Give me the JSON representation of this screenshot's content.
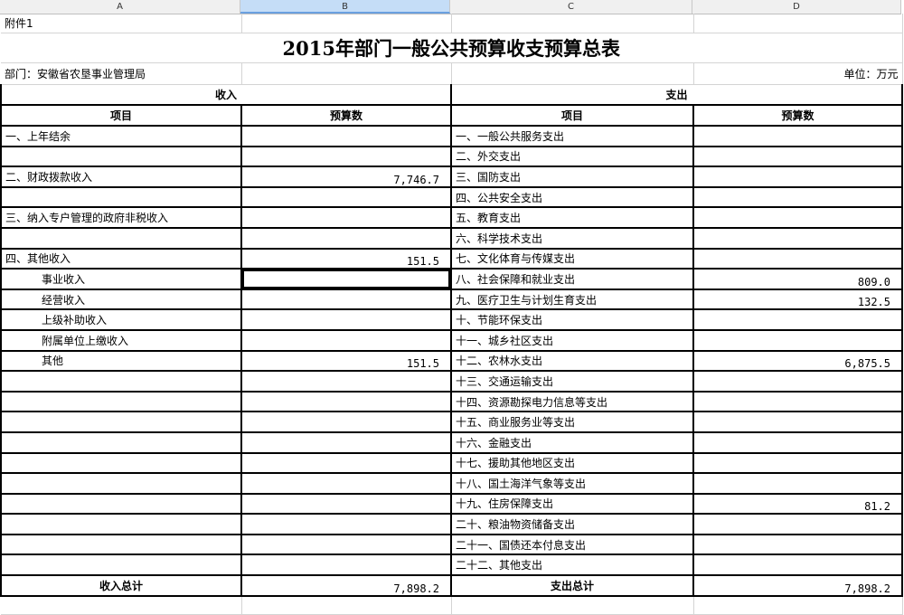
{
  "columns": [
    "A",
    "B",
    "C",
    "D"
  ],
  "selected_column": "B",
  "attachment": "附件1",
  "title": "2015年部门一般公共预算收支预算总表",
  "department": "部门：安徽省农垦事业管理局",
  "unit": "单位：万元",
  "income_header": "收入",
  "expense_header": "支出",
  "item_header": "项目",
  "budget_header": "预算数",
  "rows": [
    {
      "income": "一、上年结余",
      "income_value": "",
      "indent": false,
      "expense": "一、一般公共服务支出",
      "expense_value": ""
    },
    {
      "income": "",
      "income_value": "",
      "indent": false,
      "expense": "二、外交支出",
      "expense_value": ""
    },
    {
      "income": "二、财政拨款收入",
      "income_value": "7,746.7",
      "indent": false,
      "expense": "三、国防支出",
      "expense_value": ""
    },
    {
      "income": "",
      "income_value": "",
      "indent": false,
      "expense": "四、公共安全支出",
      "expense_value": ""
    },
    {
      "income": "三、纳入专户管理的政府非税收入",
      "income_value": "",
      "indent": false,
      "expense": "五、教育支出",
      "expense_value": ""
    },
    {
      "income": "",
      "income_value": "",
      "indent": false,
      "expense": "六、科学技术支出",
      "expense_value": ""
    },
    {
      "income": "四、其他收入",
      "income_value": "151.5",
      "indent": false,
      "expense": "七、文化体育与传媒支出",
      "expense_value": ""
    },
    {
      "income": "事业收入",
      "income_value": "",
      "indent": true,
      "selected": true,
      "expense": "八、社会保障和就业支出",
      "expense_value": "809.0"
    },
    {
      "income": "经营收入",
      "income_value": "",
      "indent": true,
      "expense": "九、医疗卫生与计划生育支出",
      "expense_value": "132.5"
    },
    {
      "income": "上级补助收入",
      "income_value": "",
      "indent": true,
      "expense": "十、节能环保支出",
      "expense_value": ""
    },
    {
      "income": "附属单位上缴收入",
      "income_value": "",
      "indent": true,
      "expense": "十一、城乡社区支出",
      "expense_value": ""
    },
    {
      "income": "其他",
      "income_value": "151.5",
      "indent": true,
      "expense": "十二、农林水支出",
      "expense_value": "6,875.5"
    },
    {
      "income": "",
      "income_value": "",
      "indent": false,
      "expense": "十三、交通运输支出",
      "expense_value": ""
    },
    {
      "income": "",
      "income_value": "",
      "indent": false,
      "expense": "十四、资源勘探电力信息等支出",
      "expense_value": ""
    },
    {
      "income": "",
      "income_value": "",
      "indent": false,
      "expense": "十五、商业服务业等支出",
      "expense_value": ""
    },
    {
      "income": "",
      "income_value": "",
      "indent": false,
      "expense": "十六、金融支出",
      "expense_value": ""
    },
    {
      "income": "",
      "income_value": "",
      "indent": false,
      "expense": "十七、援助其他地区支出",
      "expense_value": ""
    },
    {
      "income": "",
      "income_value": "",
      "indent": false,
      "expense": "十八、国土海洋气象等支出",
      "expense_value": ""
    },
    {
      "income": "",
      "income_value": "",
      "indent": false,
      "expense": "十九、住房保障支出",
      "expense_value": "81.2"
    },
    {
      "income": "",
      "income_value": "",
      "indent": false,
      "expense": "二十、粮油物资储备支出",
      "expense_value": ""
    },
    {
      "income": "",
      "income_value": "",
      "indent": false,
      "expense": "二十一、国债还本付息支出",
      "expense_value": ""
    },
    {
      "income": "",
      "income_value": "",
      "indent": false,
      "expense": "二十二、其他支出",
      "expense_value": ""
    }
  ],
  "totals": {
    "income_label": "收入总计",
    "income_value": "7,898.2",
    "expense_label": "支出总计",
    "expense_value": "7,898.2"
  }
}
